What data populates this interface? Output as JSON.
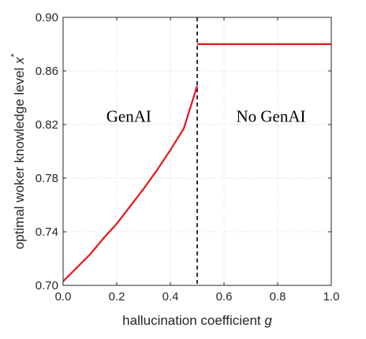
{
  "chart_data": {
    "type": "line",
    "xlabel_text": "hallucination coefficient ",
    "xlabel_var": "g",
    "ylabel_text": "optimal woker knowledge level ",
    "ylabel_var": "x",
    "ylabel_sup": "*",
    "xlim": [
      0.0,
      1.0
    ],
    "ylim": [
      0.7,
      0.9
    ],
    "xticks": [
      0.0,
      0.2,
      0.4,
      0.6,
      0.8,
      1.0
    ],
    "xtick_labels": [
      "0.0",
      "0.2",
      "0.4",
      "0.6",
      "0.8",
      "1.0"
    ],
    "yticks": [
      0.7,
      0.74,
      0.78,
      0.82,
      0.86,
      0.9
    ],
    "ytick_labels": [
      "0.70",
      "0.74",
      "0.78",
      "0.82",
      "0.86",
      "0.90"
    ],
    "grid": true,
    "line_color": "#e8141c",
    "threshold_color": "#000000",
    "threshold_x": 0.5,
    "series": [
      {
        "x": [
          0.0,
          0.05,
          0.1,
          0.15,
          0.2,
          0.25,
          0.3,
          0.35,
          0.4,
          0.45,
          0.5
        ],
        "y": [
          0.703,
          0.713,
          0.723,
          0.735,
          0.746,
          0.759,
          0.772,
          0.786,
          0.801,
          0.817,
          0.849
        ]
      },
      {
        "x": [
          0.5,
          1.0
        ],
        "y": [
          0.88,
          0.88
        ]
      }
    ],
    "annotations": [
      {
        "text": "GenAI",
        "x": 0.245,
        "y": 0.822
      },
      {
        "text": "No GenAI",
        "x": 0.775,
        "y": 0.822
      }
    ]
  }
}
